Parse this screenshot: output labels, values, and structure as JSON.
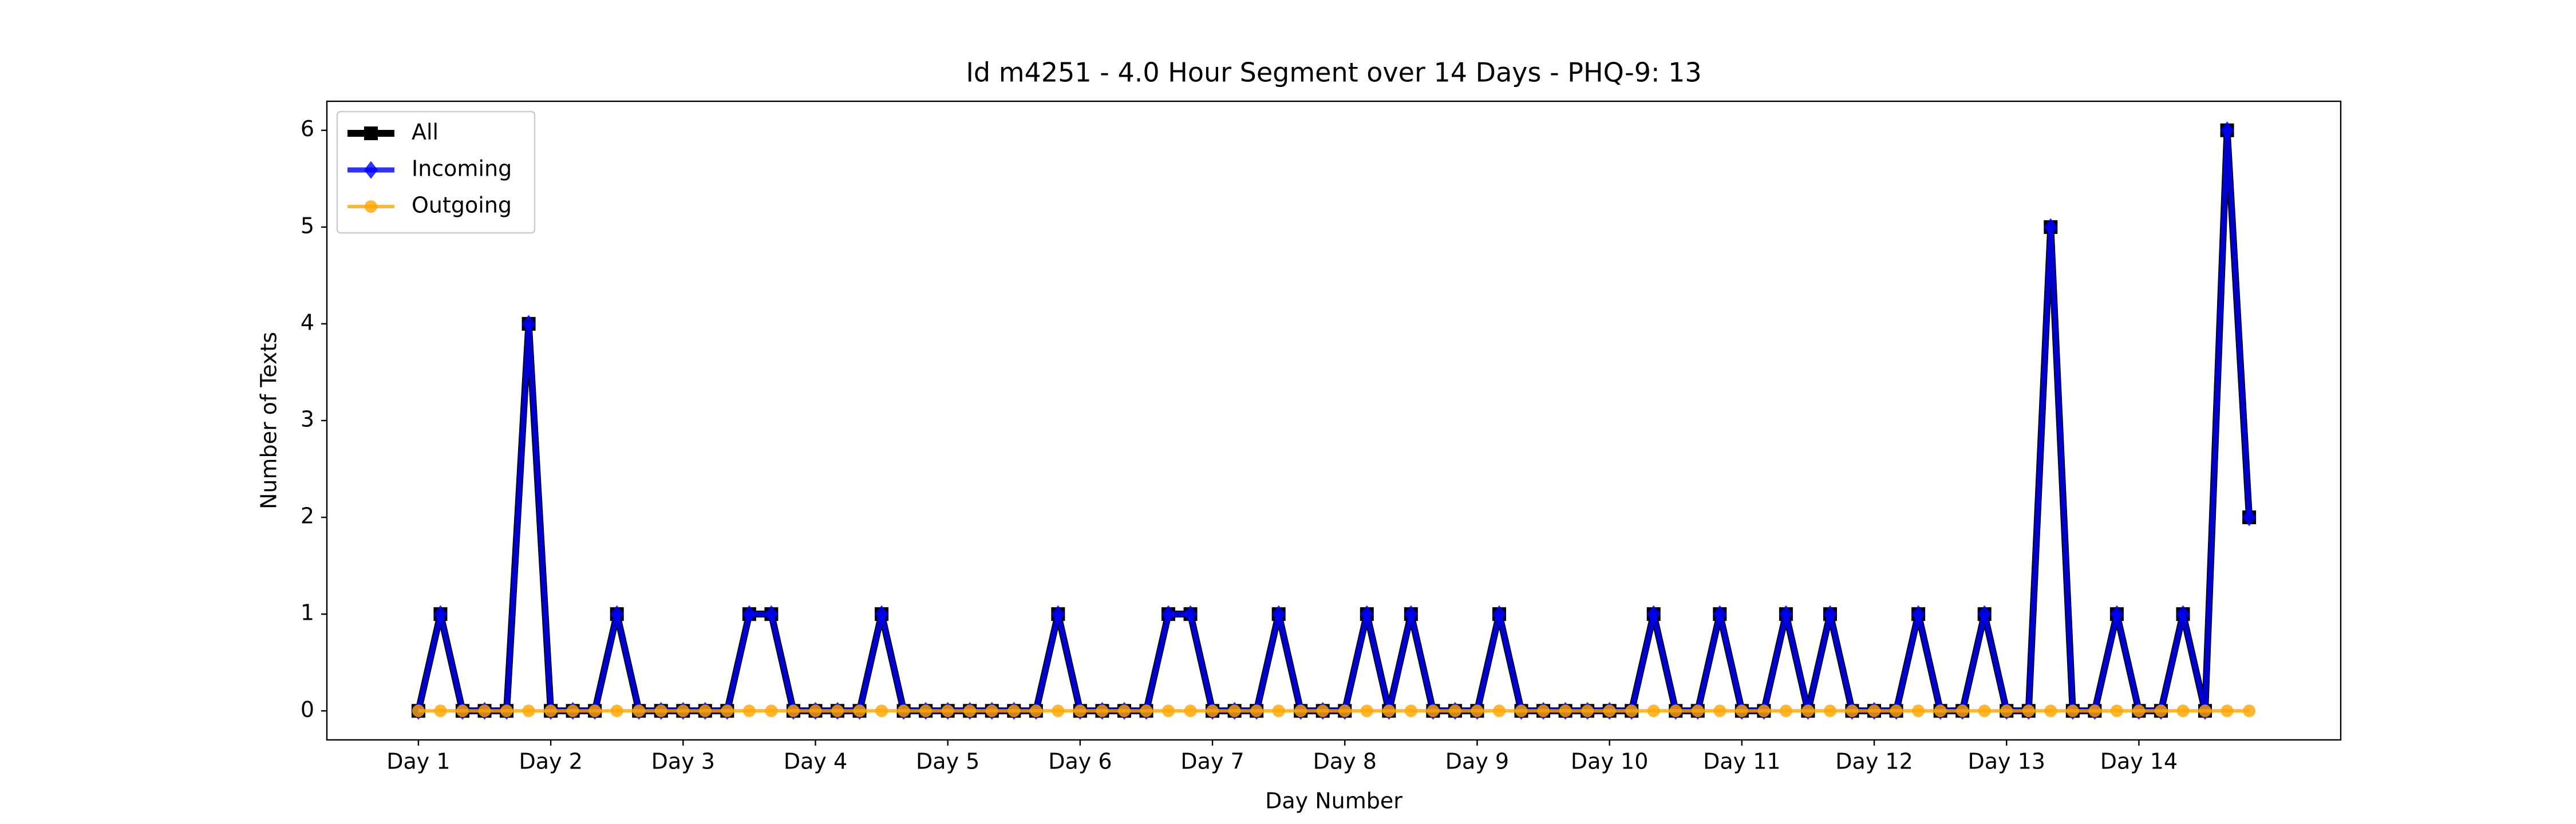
{
  "chart_data": {
    "type": "line",
    "title": "Id m4251 - 4.0 Hour Segment over 14 Days - PHQ-9: 13",
    "x_label": "Day Number",
    "y_label": "Number of Texts",
    "x": [
      0,
      1,
      2,
      3,
      4,
      5,
      6,
      7,
      8,
      9,
      10,
      11,
      12,
      13,
      14,
      15,
      16,
      17,
      18,
      19,
      20,
      21,
      22,
      23,
      24,
      25,
      26,
      27,
      28,
      29,
      30,
      31,
      32,
      33,
      34,
      35,
      36,
      37,
      38,
      39,
      40,
      41,
      42,
      43,
      44,
      45,
      46,
      47,
      48,
      49,
      50,
      51,
      52,
      53,
      54,
      55,
      56,
      57,
      58,
      59,
      60,
      61,
      62,
      63,
      64,
      65,
      66,
      67,
      68,
      69,
      70,
      71,
      72,
      73,
      74,
      75,
      76,
      77,
      78,
      79,
      80,
      81,
      82,
      83
    ],
    "series": [
      {
        "name": "All",
        "color": "#000000",
        "marker": "square",
        "values": [
          0,
          1,
          0,
          0,
          0,
          4,
          0,
          0,
          0,
          1,
          0,
          0,
          0,
          0,
          0,
          1,
          1,
          0,
          0,
          0,
          0,
          1,
          0,
          0,
          0,
          0,
          0,
          0,
          0,
          1,
          0,
          0,
          0,
          0,
          1,
          1,
          0,
          0,
          0,
          1,
          0,
          0,
          0,
          1,
          0,
          1,
          0,
          0,
          0,
          1,
          0,
          0,
          0,
          0,
          0,
          0,
          1,
          0,
          0,
          1,
          0,
          0,
          1,
          0,
          1,
          0,
          0,
          0,
          1,
          0,
          0,
          1,
          0,
          0,
          5,
          0,
          0,
          1,
          0,
          0,
          1,
          0,
          6,
          2
        ]
      },
      {
        "name": "Incoming",
        "color": "#0000ff",
        "marker": "diamond",
        "values": [
          0,
          1,
          0,
          0,
          0,
          4,
          0,
          0,
          0,
          1,
          0,
          0,
          0,
          0,
          0,
          1,
          1,
          0,
          0,
          0,
          0,
          1,
          0,
          0,
          0,
          0,
          0,
          0,
          0,
          1,
          0,
          0,
          0,
          0,
          1,
          1,
          0,
          0,
          0,
          1,
          0,
          0,
          0,
          1,
          0,
          1,
          0,
          0,
          0,
          1,
          0,
          0,
          0,
          0,
          0,
          0,
          1,
          0,
          0,
          1,
          0,
          0,
          1,
          0,
          1,
          0,
          0,
          0,
          1,
          0,
          0,
          1,
          0,
          0,
          5,
          0,
          0,
          1,
          0,
          0,
          1,
          0,
          6,
          2
        ]
      },
      {
        "name": "Outgoing",
        "color": "#ffa500",
        "marker": "circle",
        "values": [
          0,
          0,
          0,
          0,
          0,
          0,
          0,
          0,
          0,
          0,
          0,
          0,
          0,
          0,
          0,
          0,
          0,
          0,
          0,
          0,
          0,
          0,
          0,
          0,
          0,
          0,
          0,
          0,
          0,
          0,
          0,
          0,
          0,
          0,
          0,
          0,
          0,
          0,
          0,
          0,
          0,
          0,
          0,
          0,
          0,
          0,
          0,
          0,
          0,
          0,
          0,
          0,
          0,
          0,
          0,
          0,
          0,
          0,
          0,
          0,
          0,
          0,
          0,
          0,
          0,
          0,
          0,
          0,
          0,
          0,
          0,
          0,
          0,
          0,
          0,
          0,
          0,
          0,
          0,
          0,
          0,
          0,
          0,
          0
        ]
      }
    ],
    "xlim": [
      -4.15,
      87.15
    ],
    "xticks": [
      {
        "value": 0,
        "label": "Day 1"
      },
      {
        "value": 6,
        "label": "Day 2"
      },
      {
        "value": 12,
        "label": "Day 3"
      },
      {
        "value": 18,
        "label": "Day 4"
      },
      {
        "value": 24,
        "label": "Day 5"
      },
      {
        "value": 30,
        "label": "Day 6"
      },
      {
        "value": 36,
        "label": "Day 7"
      },
      {
        "value": 42,
        "label": "Day 8"
      },
      {
        "value": 48,
        "label": "Day 9"
      },
      {
        "value": 54,
        "label": "Day 10"
      },
      {
        "value": 60,
        "label": "Day 11"
      },
      {
        "value": 66,
        "label": "Day 12"
      },
      {
        "value": 72,
        "label": "Day 13"
      },
      {
        "value": 78,
        "label": "Day 14"
      }
    ],
    "ylim": [
      -0.3,
      6.3
    ],
    "yticks": [
      0,
      1,
      2,
      3,
      4,
      5,
      6
    ],
    "legend": "upper left"
  }
}
